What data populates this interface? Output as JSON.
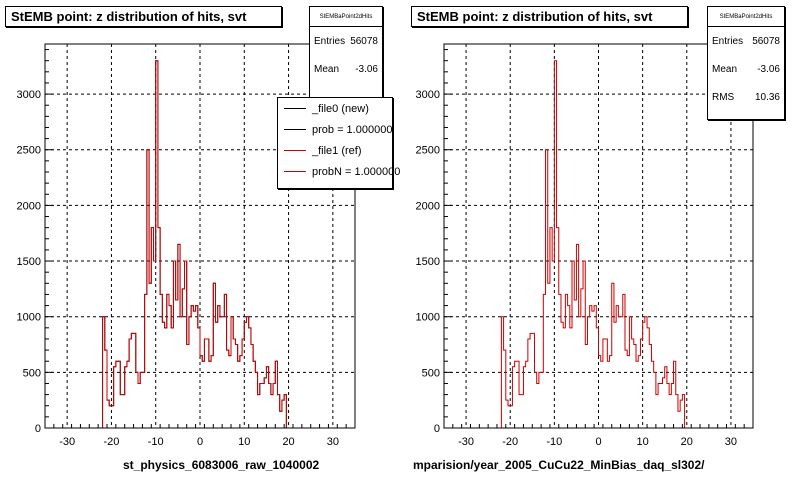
{
  "chart_data": [
    {
      "type": "histogram",
      "title": "StEMB point: z distribution of hits, svt",
      "xlabel": "st_physics_6083006_raw_1040002",
      "ylabel": "",
      "xlim": [
        -35,
        35
      ],
      "ylim": [
        0,
        3450
      ],
      "xticks": [
        -30,
        -20,
        -10,
        0,
        10,
        20,
        30
      ],
      "yticks": [
        0,
        500,
        1000,
        1500,
        2000,
        2500,
        3000
      ],
      "grid": true,
      "bin_edges_start": -35,
      "bin_width": 0.5,
      "series": [
        {
          "name": "_file0 (new)",
          "color": "#000000",
          "values": [
            0,
            0,
            0,
            0,
            0,
            0,
            0,
            0,
            0,
            0,
            0,
            0,
            0,
            0,
            0,
            0,
            0,
            0,
            0,
            0,
            0,
            0,
            0,
            0,
            0,
            0,
            1000,
            700,
            250,
            200,
            200,
            550,
            600,
            600,
            300,
            300,
            550,
            600,
            800,
            850,
            850,
            500,
            400,
            500,
            500,
            1200,
            2500,
            1300,
            1800,
            1500,
            3300,
            1800,
            1200,
            950,
            900,
            1200,
            1100,
            900,
            1500,
            1150,
            1650,
            1000,
            1250,
            1500,
            750,
            1000,
            1100,
            1050,
            1100,
            900,
            650,
            600,
            800,
            800,
            600,
            650,
            1300,
            950,
            1100,
            1000,
            1000,
            1200,
            700,
            650,
            1000,
            800,
            750,
            600,
            650,
            800,
            950,
            1000,
            900,
            750,
            600,
            500,
            300,
            400,
            400,
            450,
            550,
            400,
            300,
            400,
            600,
            300,
            150,
            250,
            300,
            0,
            0,
            0,
            0,
            0,
            0,
            0,
            0,
            0,
            0,
            0,
            0,
            0,
            0,
            0,
            0,
            0,
            0,
            0,
            0,
            0,
            0,
            0,
            0,
            0
          ]
        },
        {
          "name": "_file1 (ref)",
          "color": "#cc0000",
          "values": [
            0,
            0,
            0,
            0,
            0,
            0,
            0,
            0,
            0,
            0,
            0,
            0,
            0,
            0,
            0,
            0,
            0,
            0,
            0,
            0,
            0,
            0,
            0,
            0,
            0,
            0,
            1000,
            700,
            250,
            200,
            200,
            550,
            600,
            600,
            300,
            300,
            550,
            600,
            800,
            850,
            850,
            500,
            400,
            500,
            500,
            1200,
            2500,
            1300,
            1800,
            1500,
            3300,
            1800,
            1200,
            950,
            900,
            1200,
            1100,
            900,
            1500,
            1150,
            1650,
            1000,
            1250,
            1500,
            750,
            1000,
            1100,
            1050,
            1100,
            900,
            650,
            600,
            800,
            800,
            600,
            650,
            1300,
            950,
            1100,
            1000,
            1000,
            1200,
            700,
            650,
            1000,
            800,
            750,
            600,
            650,
            800,
            950,
            1000,
            900,
            750,
            600,
            500,
            300,
            400,
            400,
            450,
            550,
            400,
            300,
            400,
            600,
            300,
            150,
            250,
            300,
            0,
            0,
            0,
            0,
            0,
            0,
            0,
            0,
            0,
            0,
            0,
            0,
            0,
            0,
            0,
            0,
            0,
            0,
            0,
            0,
            0,
            0,
            0,
            0,
            0
          ]
        }
      ],
      "stats": {
        "header": "StEMBaPoint2dHits",
        "Entries": "56078",
        "Mean": "-3.06"
      },
      "legend": [
        "_file0 (new)",
        "prob = 1.000000",
        "_file1 (ref)",
        "probN = 1.000000"
      ]
    },
    {
      "type": "histogram",
      "title": "StEMB point: z distribution of hits, svt",
      "xlabel": "mparision/year_2005_CuCu22_MinBias_daq_sl302/",
      "ylabel": "",
      "xlim": [
        -35,
        35
      ],
      "ylim": [
        0,
        3450
      ],
      "xticks": [
        -30,
        -20,
        -10,
        0,
        10,
        20,
        30
      ],
      "yticks": [
        0,
        500,
        1000,
        1500,
        2000,
        2500,
        3000
      ],
      "grid": true,
      "bin_edges_start": -35,
      "bin_width": 0.5,
      "series": [
        {
          "name": "",
          "color": "#cc0000",
          "values": [
            0,
            0,
            0,
            0,
            0,
            0,
            0,
            0,
            0,
            0,
            0,
            0,
            0,
            0,
            0,
            0,
            0,
            0,
            0,
            0,
            0,
            0,
            0,
            0,
            0,
            0,
            1000,
            700,
            250,
            200,
            200,
            550,
            600,
            600,
            300,
            300,
            550,
            600,
            800,
            850,
            850,
            500,
            400,
            500,
            500,
            1200,
            2500,
            1300,
            1800,
            1500,
            3300,
            1800,
            1200,
            950,
            900,
            1200,
            1100,
            900,
            1500,
            1150,
            1650,
            1000,
            1250,
            1500,
            750,
            1000,
            1100,
            1050,
            1100,
            900,
            650,
            600,
            800,
            800,
            600,
            650,
            1300,
            950,
            1100,
            1000,
            1000,
            1200,
            700,
            650,
            1000,
            800,
            750,
            600,
            650,
            800,
            950,
            1000,
            900,
            750,
            600,
            500,
            300,
            400,
            400,
            450,
            550,
            400,
            300,
            400,
            600,
            300,
            150,
            250,
            300,
            0,
            0,
            0,
            0,
            0,
            0,
            0,
            0,
            0,
            0,
            0,
            0,
            0,
            0,
            0,
            0,
            0,
            0,
            0,
            0,
            0,
            0,
            0,
            0,
            0
          ]
        }
      ],
      "stats": {
        "header": "StEMBaPoint2dHits",
        "Entries": "56078",
        "Mean": "-3.06",
        "RMS": "10.36"
      }
    }
  ]
}
